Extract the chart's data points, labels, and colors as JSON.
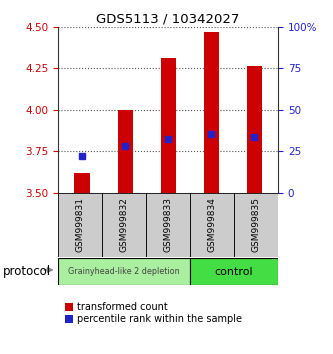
{
  "title": "GDS5113 / 10342027",
  "samples": [
    "GSM999831",
    "GSM999832",
    "GSM999833",
    "GSM999834",
    "GSM999835"
  ],
  "bar_bottom": 3.5,
  "bar_tops": [
    3.62,
    4.0,
    4.31,
    4.47,
    4.26
  ],
  "percentile_values": [
    3.72,
    3.785,
    3.825,
    3.855,
    3.835
  ],
  "ylim_left": [
    3.5,
    4.5
  ],
  "ylim_right": [
    0,
    100
  ],
  "yticks_left": [
    3.5,
    3.75,
    4.0,
    4.25,
    4.5
  ],
  "yticks_right": [
    0,
    25,
    50,
    75,
    100
  ],
  "bar_color": "#cc0000",
  "marker_color": "#2222cc",
  "group1_color": "#aaeea0",
  "group2_color": "#44dd44",
  "group1_label": "Grainyhead-like 2 depletion",
  "group2_label": "control",
  "group1_count": 3,
  "group2_count": 2,
  "protocol_label": "protocol",
  "legend_bar_label": "transformed count",
  "legend_marker_label": "percentile rank within the sample",
  "bar_width": 0.35,
  "left_tick_color": "#cc0000",
  "right_tick_color": "#2222cc",
  "grid_color": "#555555",
  "bg_color": "#ffffff",
  "label_area_color": "#cccccc",
  "spine_color": "#333333"
}
